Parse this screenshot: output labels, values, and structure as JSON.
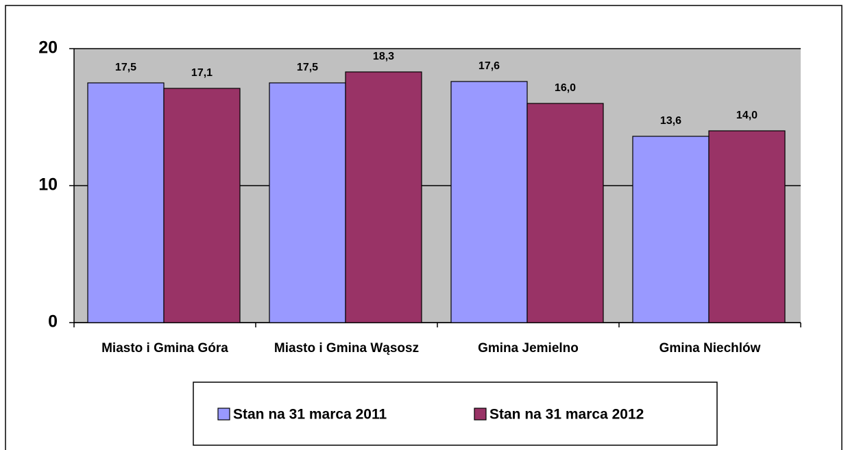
{
  "chart_data": {
    "type": "bar",
    "categories": [
      "Miasto i Gmina Góra",
      "Miasto i Gmina Wąsosz",
      "Gmina Jemielno",
      "Gmina Niechlów"
    ],
    "series": [
      {
        "name": "Stan na 31 marca 2011",
        "color": "#9999ff",
        "values": [
          17.5,
          17.5,
          17.6,
          13.6
        ],
        "value_labels": [
          "17,5",
          "17,5",
          "17,6",
          "13,6"
        ]
      },
      {
        "name": "Stan na 31 marca 2012",
        "color": "#993366",
        "values": [
          17.1,
          18.3,
          16.0,
          14.0
        ],
        "value_labels": [
          "17,1",
          "18,3",
          "16,0",
          "14,0"
        ]
      }
    ],
    "ylim": [
      0,
      20
    ],
    "yticks": [
      0,
      10,
      20
    ],
    "grid": true,
    "legend": "bottom",
    "plot_background": "#c0c0c0"
  }
}
